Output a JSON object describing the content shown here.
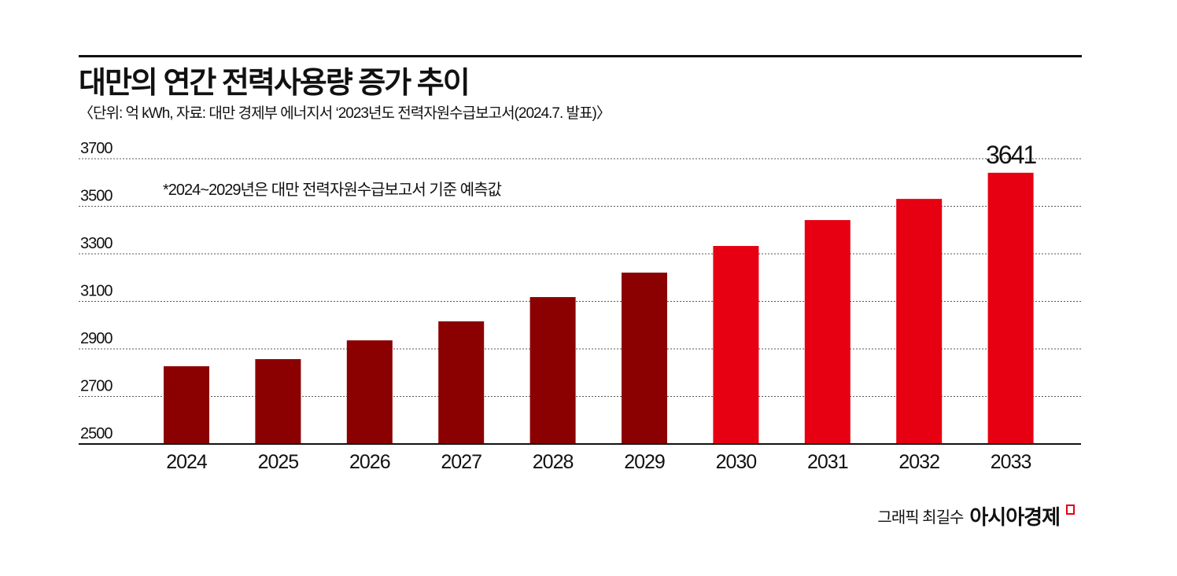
{
  "header": {
    "title": "대만의 연간 전력사용량 증가 추이",
    "subtitle": "〈단위: 억 kWh, 자료: 대만 경제부 에너지서 ‘2023년도 전력자원수급보고서(2024.7. 발표)〉"
  },
  "note": "*2024~2029년은 대만 전력자원수급보고서 기준 예측값",
  "credit": {
    "author": "그래픽 최길수",
    "brand": "아시아경제"
  },
  "colors": {
    "early": "#8b0000",
    "late": "#e60012",
    "brand": "#e60012"
  },
  "chart_data": {
    "type": "bar",
    "title": "대만의 연간 전력사용량 증가 추이",
    "ylabel": "억 kWh",
    "categories": [
      "2024",
      "2025",
      "2026",
      "2027",
      "2028",
      "2029",
      "2030",
      "2031",
      "2032",
      "2033"
    ],
    "values": [
      2827,
      2857,
      2936,
      3016,
      3118,
      3221,
      3333,
      3442,
      3531,
      3641
    ],
    "data_labels": {
      "2033": "3641"
    },
    "ylim": [
      2500,
      3700
    ],
    "yticks": [
      2500,
      2700,
      2900,
      3100,
      3300,
      3500,
      3700
    ],
    "grid": "horizontal dotted",
    "bar_colors": [
      "#8b0000",
      "#8b0000",
      "#8b0000",
      "#8b0000",
      "#8b0000",
      "#8b0000",
      "#e60012",
      "#e60012",
      "#e60012",
      "#e60012"
    ]
  }
}
